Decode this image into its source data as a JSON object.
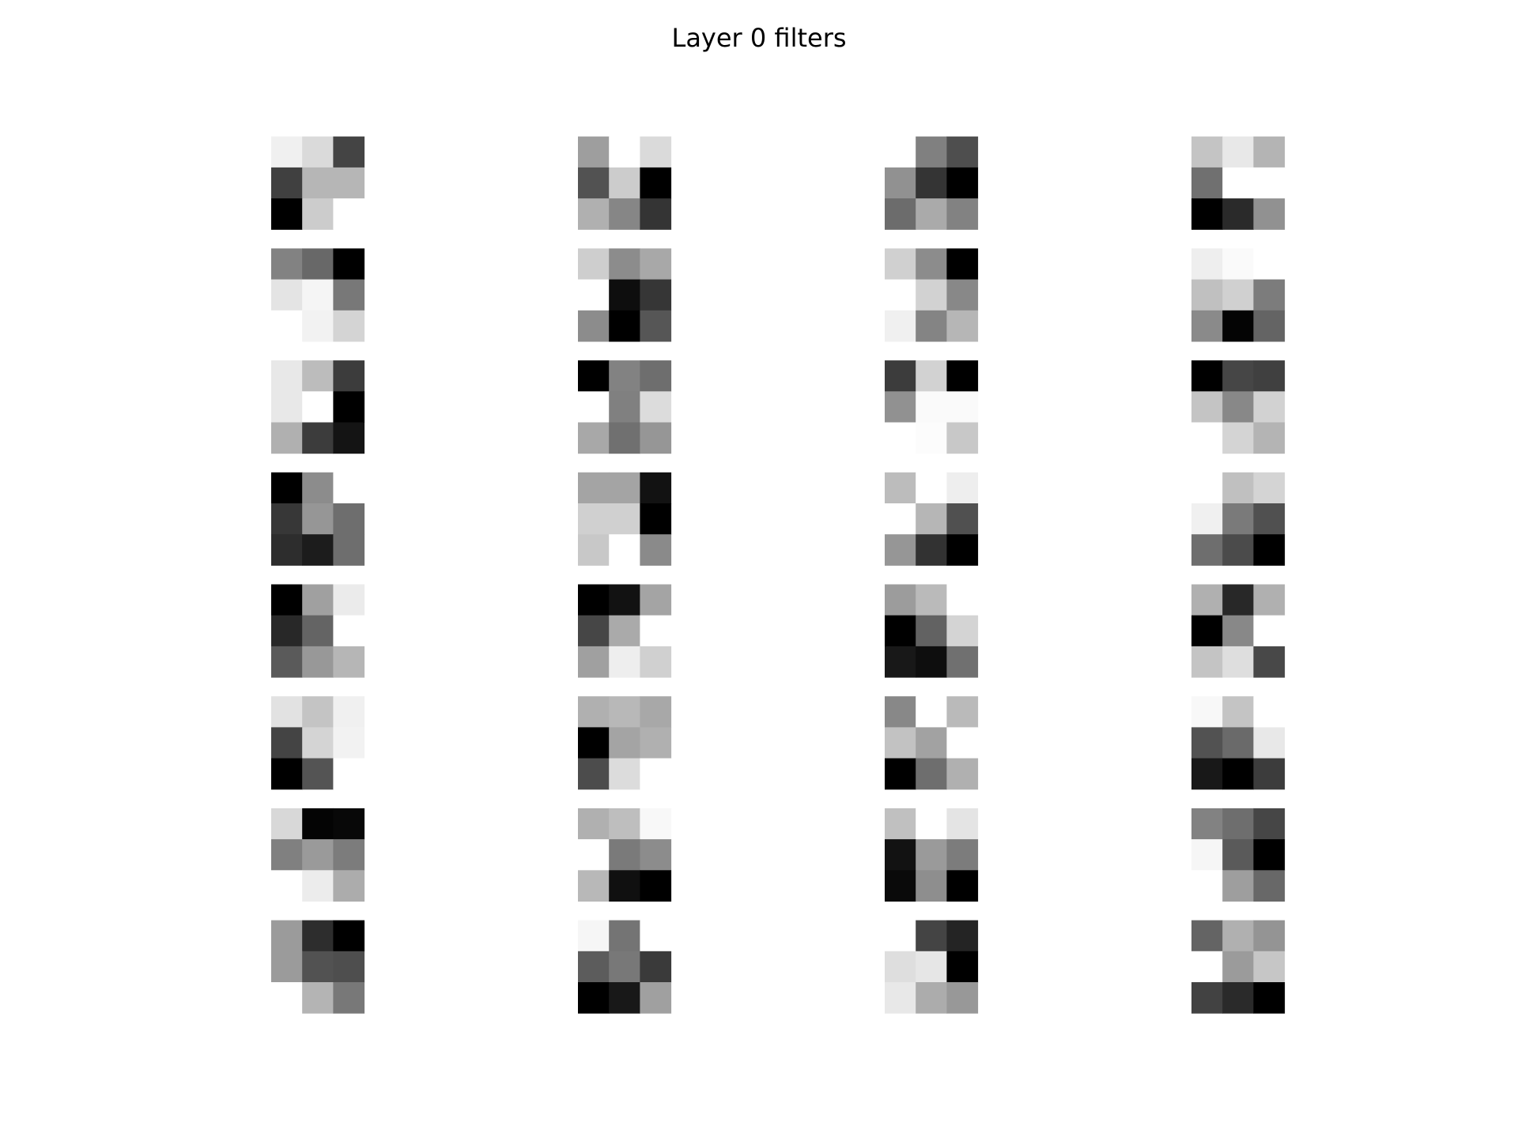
{
  "chart_data": {
    "type": "image_grid",
    "title": "Layer 0 filters",
    "vmin": 0,
    "vmax": 255,
    "filters": [
      [
        [
          240,
          218,
          68
        ],
        [
          64,
          182,
          182
        ],
        [
          0,
          204,
          255
        ]
      ],
      [
        [
          158,
          255,
          218
        ],
        [
          82,
          204,
          0
        ],
        [
          176,
          134,
          52
        ]
      ],
      [
        [
          255,
          128,
          78
        ],
        [
          145,
          52,
          0
        ],
        [
          108,
          170,
          130
        ]
      ],
      [
        [
          196,
          232,
          180
        ],
        [
          112,
          255,
          255
        ],
        [
          0,
          42,
          145
        ]
      ],
      [
        [
          130,
          104,
          0
        ],
        [
          228,
          245,
          120
        ],
        [
          255,
          242,
          212
        ]
      ],
      [
        [
          206,
          140,
          168
        ],
        [
          255,
          14,
          54
        ],
        [
          140,
          0,
          86
        ]
      ],
      [
        [
          208,
          140,
          0
        ],
        [
          255,
          210,
          136
        ],
        [
          240,
          132,
          182
        ]
      ],
      [
        [
          238,
          250,
          255
        ],
        [
          192,
          208,
          124
        ],
        [
          138,
          4,
          100
        ]
      ],
      [
        [
          232,
          188,
          60
        ],
        [
          232,
          255,
          0
        ],
        [
          176,
          60,
          20
        ]
      ],
      [
        [
          0,
          130,
          110
        ],
        [
          255,
          128,
          220
        ],
        [
          168,
          112,
          150
        ]
      ],
      [
        [
          60,
          210,
          0
        ],
        [
          145,
          250,
          250
        ],
        [
          255,
          252,
          200
        ]
      ],
      [
        [
          0,
          70,
          64
        ],
        [
          196,
          136,
          210
        ],
        [
          255,
          212,
          180
        ]
      ],
      [
        [
          0,
          140,
          255
        ],
        [
          55,
          150,
          110
        ],
        [
          45,
          28,
          110
        ]
      ],
      [
        [
          164,
          164,
          18
        ],
        [
          208,
          208,
          0
        ],
        [
          200,
          255,
          138
        ]
      ],
      [
        [
          188,
          255,
          238
        ],
        [
          255,
          182,
          80
        ],
        [
          150,
          50,
          0
        ]
      ],
      [
        [
          255,
          192,
          212
        ],
        [
          240,
          122,
          80
        ],
        [
          110,
          75,
          0
        ]
      ],
      [
        [
          0,
          160,
          235
        ],
        [
          40,
          100,
          255
        ],
        [
          90,
          152,
          182
        ]
      ],
      [
        [
          0,
          18,
          164
        ],
        [
          70,
          170,
          255
        ],
        [
          160,
          238,
          208
        ]
      ],
      [
        [
          156,
          186,
          255
        ],
        [
          0,
          98,
          212
        ],
        [
          24,
          14,
          112
        ]
      ],
      [
        [
          176,
          40,
          176
        ],
        [
          0,
          136,
          255
        ],
        [
          196,
          222,
          72
        ]
      ],
      [
        [
          226,
          196,
          240
        ],
        [
          68,
          212,
          242
        ],
        [
          0,
          84,
          255
        ]
      ],
      [
        [
          176,
          184,
          168
        ],
        [
          0,
          164,
          176
        ],
        [
          76,
          220,
          255
        ]
      ],
      [
        [
          136,
          255,
          186
        ],
        [
          194,
          162,
          255
        ],
        [
          0,
          110,
          176
        ]
      ],
      [
        [
          248,
          196,
          255
        ],
        [
          82,
          106,
          232
        ],
        [
          24,
          0,
          60
        ]
      ],
      [
        [
          216,
          4,
          8
        ],
        [
          128,
          154,
          124
        ],
        [
          255,
          236,
          172
        ]
      ],
      [
        [
          176,
          190,
          248
        ],
        [
          255,
          122,
          140
        ],
        [
          184,
          16,
          0
        ]
      ],
      [
        [
          192,
          255,
          228
        ],
        [
          18,
          154,
          124
        ],
        [
          10,
          142,
          0
        ]
      ],
      [
        [
          130,
          110,
          70
        ],
        [
          246,
          90,
          0
        ],
        [
          255,
          158,
          104
        ]
      ],
      [
        [
          155,
          45,
          0
        ],
        [
          155,
          82,
          78
        ],
        [
          255,
          180,
          120
        ]
      ],
      [
        [
          246,
          116,
          255
        ],
        [
          92,
          120,
          58
        ],
        [
          0,
          24,
          160
        ]
      ],
      [
        [
          255,
          68,
          36
        ],
        [
          222,
          230,
          0
        ],
        [
          232,
          172,
          152
        ]
      ],
      [
        [
          100,
          176,
          148
        ],
        [
          255,
          155,
          198
        ],
        [
          66,
          42,
          0
        ]
      ]
    ]
  }
}
